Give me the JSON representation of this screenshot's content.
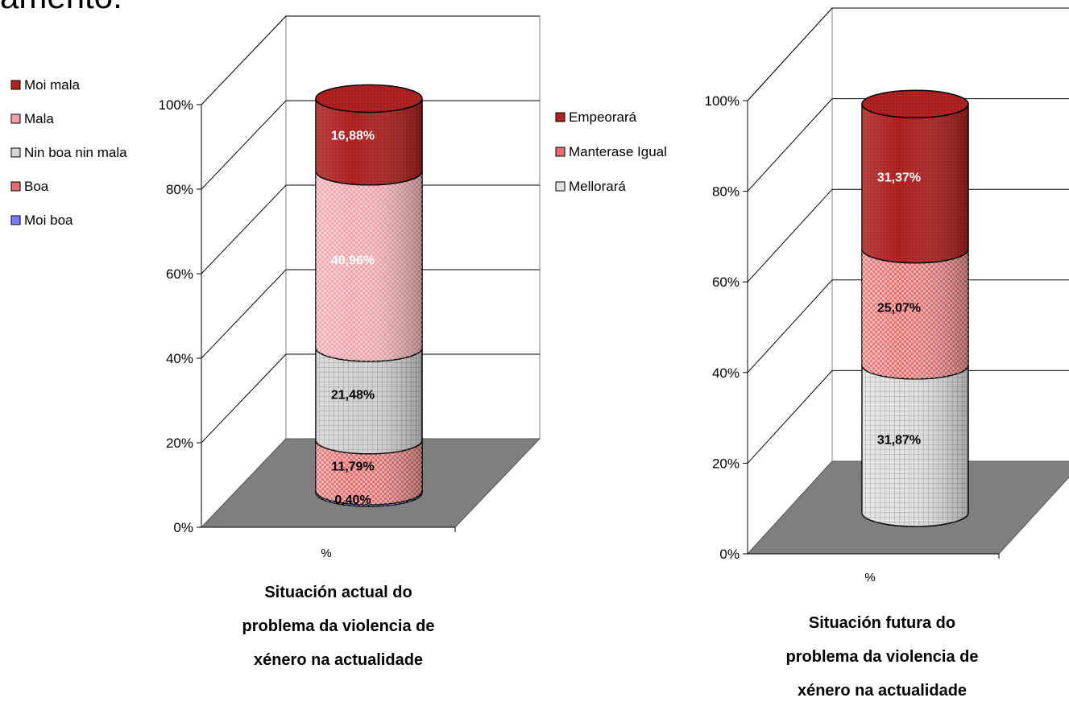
{
  "heading_fragment": "amento.",
  "chart_data": [
    {
      "type": "bar",
      "stacked": true,
      "categories": [
        "%"
      ],
      "yticks": [
        "0%",
        "20%",
        "40%",
        "60%",
        "80%",
        "100%"
      ],
      "ylim": [
        0,
        100
      ],
      "title_lines": [
        "Situación actual do",
        "problema da violencia de",
        "xénero na actualidade"
      ],
      "legend_position": "left",
      "series": [
        {
          "name": "Moi boa",
          "value": 0.4,
          "label": "0,40%",
          "color": "#7b7bff"
        },
        {
          "name": "Boa",
          "value": 11.79,
          "label": "11,79%",
          "color": "#e36c6c"
        },
        {
          "name": "Nin boa nin mala",
          "value": 21.48,
          "label": "21,48%",
          "color": "#d4d4d4"
        },
        {
          "name": "Mala",
          "value": 40.96,
          "label": "40,96%",
          "color": "#f0a0a6"
        },
        {
          "name": "Moi mala",
          "value": 16.88,
          "label": "16,88%",
          "color": "#b32222"
        }
      ]
    },
    {
      "type": "bar",
      "stacked": true,
      "categories": [
        "%"
      ],
      "yticks": [
        "0%",
        "20%",
        "40%",
        "60%",
        "80%",
        "100%"
      ],
      "ylim": [
        0,
        100
      ],
      "title_lines": [
        "Situación futura do",
        "problema da violencia de",
        "xénero na actualidade"
      ],
      "legend_position": "left",
      "series": [
        {
          "name": "Mellorará",
          "value": 31.87,
          "label": "31,87%",
          "color": "#e2e2e2"
        },
        {
          "name": "Manterase Igual",
          "value": 25.07,
          "label": "25,07%",
          "color": "#e66e6e"
        },
        {
          "name": "Empeorará",
          "value": 31.37,
          "label": "31,37%",
          "color": "#b32222"
        }
      ]
    }
  ]
}
